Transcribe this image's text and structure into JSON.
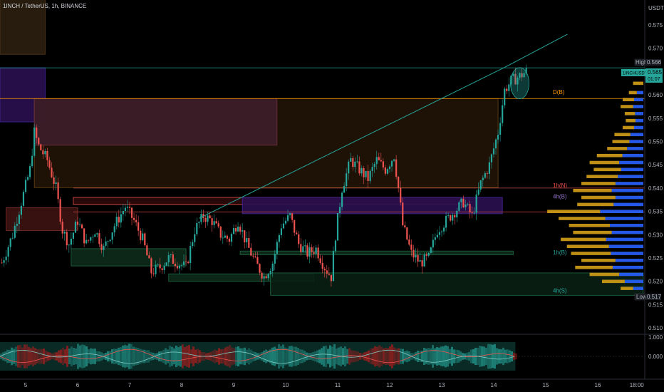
{
  "header": {
    "symbol": "1INCH",
    "pair_text": "1INCH / TetherUS, 1h, BINANCE"
  },
  "price_axis": {
    "unit": "USDT"
  },
  "badges": {
    "high_label": "High",
    "high_value": "0.566",
    "symbol_tag": "1INCHUSDT",
    "last_value": "0.565",
    "countdown": "01:07",
    "low_label": "Low",
    "low_value": "0.517"
  },
  "zone_labels": {
    "d": "D(B)",
    "label_539": "1h(N)",
    "label_537": "4h(B)",
    "label_526": "1h(B)",
    "label_518": "4h(S)"
  },
  "colors": {
    "bull": "#26a69a",
    "bear": "#ef5350",
    "trendline": "#26a69a",
    "background": "#000000",
    "volume_up": "#d4a017",
    "volume_down": "#2962ff"
  },
  "oscillator": {
    "ticks": [
      "1.000",
      "0.000"
    ]
  },
  "chart_data": {
    "type": "candlestick",
    "title": "1INCH / TetherUS, 1h, BINANCE",
    "ylabel": "USDT",
    "ylim": [
      0.508,
      0.581
    ],
    "y_ticks": [
      "0.575",
      "0.570",
      "0.565",
      "0.560",
      "0.555",
      "0.550",
      "0.545",
      "0.540",
      "0.535",
      "0.530",
      "0.525",
      "0.520",
      "0.515",
      "0.510"
    ],
    "x_ticks": [
      "5",
      "6",
      "7",
      "8",
      "9",
      "10",
      "11",
      "12",
      "13",
      "14",
      "15",
      "16",
      "18:00"
    ],
    "x_tick_positions_hours": [
      0,
      24,
      48,
      72,
      96,
      120,
      144,
      168,
      192,
      216,
      240,
      264,
      282
    ],
    "xlim_hours": [
      -12,
      285
    ],
    "close_points": [
      [
        -11,
        0.524
      ],
      [
        -6,
        0.53
      ],
      [
        -2,
        0.537
      ],
      [
        2,
        0.544
      ],
      [
        4,
        0.552
      ],
      [
        6,
        0.549
      ],
      [
        10,
        0.546
      ],
      [
        14,
        0.54
      ],
      [
        17,
        0.531
      ],
      [
        20,
        0.528
      ],
      [
        24,
        0.533
      ],
      [
        28,
        0.528
      ],
      [
        32,
        0.531
      ],
      [
        36,
        0.527
      ],
      [
        41,
        0.532
      ],
      [
        46,
        0.536
      ],
      [
        50,
        0.533
      ],
      [
        54,
        0.529
      ],
      [
        58,
        0.522
      ],
      [
        62,
        0.523
      ],
      [
        66,
        0.525
      ],
      [
        70,
        0.524
      ],
      [
        74,
        0.523
      ],
      [
        78,
        0.531
      ],
      [
        82,
        0.534
      ],
      [
        86,
        0.533
      ],
      [
        90,
        0.53
      ],
      [
        94,
        0.529
      ],
      [
        98,
        0.533
      ],
      [
        102,
        0.528
      ],
      [
        106,
        0.524
      ],
      [
        110,
        0.521
      ],
      [
        114,
        0.524
      ],
      [
        118,
        0.532
      ],
      [
        122,
        0.534
      ],
      [
        126,
        0.528
      ],
      [
        130,
        0.526
      ],
      [
        134,
        0.527
      ],
      [
        138,
        0.523
      ],
      [
        141,
        0.521
      ],
      [
        143,
        0.53
      ],
      [
        146,
        0.54
      ],
      [
        150,
        0.546
      ],
      [
        154,
        0.544
      ],
      [
        158,
        0.542
      ],
      [
        162,
        0.546
      ],
      [
        166,
        0.544
      ],
      [
        170,
        0.547
      ],
      [
        172,
        0.54
      ],
      [
        174,
        0.532
      ],
      [
        178,
        0.526
      ],
      [
        182,
        0.524
      ],
      [
        186,
        0.525
      ],
      [
        190,
        0.531
      ],
      [
        194,
        0.533
      ],
      [
        198,
        0.535
      ],
      [
        202,
        0.537
      ],
      [
        206,
        0.534
      ],
      [
        210,
        0.541
      ],
      [
        214,
        0.545
      ],
      [
        218,
        0.552
      ],
      [
        221,
        0.561
      ],
      [
        224,
        0.563
      ],
      [
        228,
        0.564
      ],
      [
        231,
        0.565
      ]
    ],
    "trendline": [
      [
        80,
        0.5335
      ],
      [
        221,
        0.5659
      ],
      [
        250,
        0.573
      ]
    ],
    "horizontal_levels": [
      {
        "price": 0.5658,
        "color": "#26a69a"
      },
      {
        "price": 0.5592,
        "color": "#ff9800"
      },
      {
        "price": 0.54,
        "color": "#ef5350"
      },
      {
        "price": 0.5349,
        "color": "#ef5350"
      }
    ],
    "zones": [
      {
        "x": [
          -12,
          9
        ],
        "y": [
          0.5687,
          0.581
        ],
        "fill": "#2b1f10",
        "edge": "#5a3b1d"
      },
      {
        "x": [
          -12,
          9
        ],
        "y": [
          0.5542,
          0.5658
        ],
        "fill": "#2a1050",
        "edge": "#4527a0"
      },
      {
        "x": [
          4,
          218
        ],
        "y": [
          0.5401,
          0.5592
        ],
        "fill": "#211408",
        "edge": "#6b4712"
      },
      {
        "x": [
          4,
          116
        ],
        "y": [
          0.5492,
          0.5592
        ],
        "fill": "#3d1e2b",
        "edge": "#70333f"
      },
      {
        "x": [
          -9,
          24
        ],
        "y": [
          0.5309,
          0.5358
        ],
        "fill": "#3d1212",
        "edge": "#80322f"
      },
      {
        "x": [
          22,
          205
        ],
        "y": [
          0.5365,
          0.538
        ],
        "fill": "#2b0a0a",
        "edge": "#ef5350"
      },
      {
        "x": [
          100,
          220
        ],
        "y": [
          0.5345,
          0.538
        ],
        "fill": "#2a1050",
        "edge": "#4527a0"
      },
      {
        "x": [
          21,
          74
        ],
        "y": [
          0.5233,
          0.527
        ],
        "fill": "#0d2a1a",
        "edge": "#1e6b45"
      },
      {
        "x": [
          66,
          133
        ],
        "y": [
          0.52,
          0.5216
        ],
        "fill": "#0d2a1a",
        "edge": "#1e6b45"
      },
      {
        "x": [
          99,
          225
        ],
        "y": [
          0.5257,
          0.5265
        ],
        "fill": "#0d2a1a",
        "edge": "#1e6b45"
      },
      {
        "x": [
          113,
          285
        ],
        "y": [
          0.517,
          0.5218
        ],
        "fill": "#0a1f14",
        "edge": "#1e6b45"
      }
    ],
    "volume_profile": [
      {
        "price": 0.5645,
        "size": 0.05,
        "side": "up"
      },
      {
        "price": 0.5625,
        "size": 0.1,
        "side": "up"
      },
      {
        "price": 0.5605,
        "size": 0.14,
        "side": "mixed"
      },
      {
        "price": 0.559,
        "size": 0.2,
        "side": "mixed"
      },
      {
        "price": 0.5575,
        "size": 0.22,
        "side": "mixed"
      },
      {
        "price": 0.556,
        "size": 0.18,
        "side": "mixed"
      },
      {
        "price": 0.5545,
        "size": 0.17,
        "side": "mixed"
      },
      {
        "price": 0.553,
        "size": 0.2,
        "side": "mixed"
      },
      {
        "price": 0.5515,
        "size": 0.28,
        "side": "mixed"
      },
      {
        "price": 0.55,
        "size": 0.3,
        "side": "mixed"
      },
      {
        "price": 0.5485,
        "size": 0.35,
        "side": "mixed"
      },
      {
        "price": 0.547,
        "size": 0.45,
        "side": "mixed"
      },
      {
        "price": 0.5455,
        "size": 0.52,
        "side": "mixed"
      },
      {
        "price": 0.544,
        "size": 0.48,
        "side": "mixed"
      },
      {
        "price": 0.5425,
        "size": 0.55,
        "side": "mixed"
      },
      {
        "price": 0.541,
        "size": 0.6,
        "side": "mixed"
      },
      {
        "price": 0.5395,
        "size": 0.68,
        "side": "mixed"
      },
      {
        "price": 0.538,
        "size": 0.6,
        "side": "mixed"
      },
      {
        "price": 0.5365,
        "size": 0.64,
        "side": "mixed"
      },
      {
        "price": 0.535,
        "size": 0.93,
        "side": "mixed"
      },
      {
        "price": 0.5335,
        "size": 0.82,
        "side": "mixed"
      },
      {
        "price": 0.532,
        "size": 0.72,
        "side": "mixed"
      },
      {
        "price": 0.5305,
        "size": 0.68,
        "side": "mixed"
      },
      {
        "price": 0.529,
        "size": 0.8,
        "side": "mixed"
      },
      {
        "price": 0.5275,
        "size": 0.74,
        "side": "mixed"
      },
      {
        "price": 0.526,
        "size": 0.7,
        "side": "mixed"
      },
      {
        "price": 0.5245,
        "size": 0.6,
        "side": "mixed"
      },
      {
        "price": 0.523,
        "size": 0.66,
        "side": "mixed"
      },
      {
        "price": 0.5215,
        "size": 0.52,
        "side": "mixed"
      },
      {
        "price": 0.52,
        "size": 0.4,
        "side": "mixed"
      },
      {
        "price": 0.5185,
        "size": 0.22,
        "side": "mixed"
      }
    ]
  }
}
